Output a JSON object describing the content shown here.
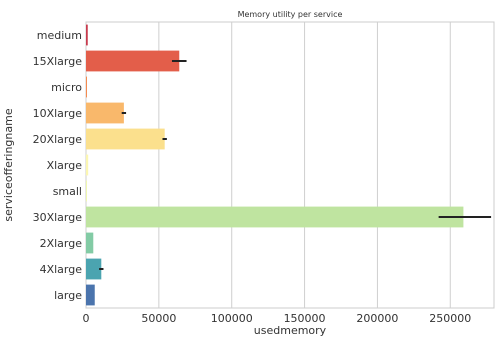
{
  "chart_data": {
    "type": "bar",
    "orientation": "horizontal",
    "title": "Memory utility per service",
    "xlabel": "usedmemory",
    "ylabel": "serviceofferingname",
    "xlim": [
      0,
      280000
    ],
    "xticks": [
      0,
      50000,
      100000,
      150000,
      200000,
      250000
    ],
    "xtick_labels": [
      "0",
      "50000",
      "100000",
      "150000",
      "200000",
      "250000"
    ],
    "grid": "vertical",
    "categories": [
      "medium",
      "15Xlarge",
      "micro",
      "10Xlarge",
      "20Xlarge",
      "Xlarge",
      "small",
      "30Xlarge",
      "2Xlarge",
      "4Xlarge",
      "large"
    ],
    "values": [
      1200,
      64000,
      300,
      26000,
      54000,
      1500,
      600,
      259000,
      5000,
      10500,
      6000
    ],
    "error_low": [
      0,
      59000,
      0,
      24500,
      52500,
      0,
      0,
      242000,
      0,
      9000,
      0
    ],
    "error_high": [
      0,
      69000,
      0,
      27500,
      55500,
      0,
      0,
      278000,
      0,
      12000,
      0
    ],
    "colors": [
      "#c83b4e",
      "#e35e4a",
      "#f58b4f",
      "#f9b86b",
      "#fbe08d",
      "#fbf6b2",
      "#f0f8b0",
      "#bfe4a0",
      "#83cba5",
      "#4ba4b0",
      "#4b74ad"
    ]
  }
}
